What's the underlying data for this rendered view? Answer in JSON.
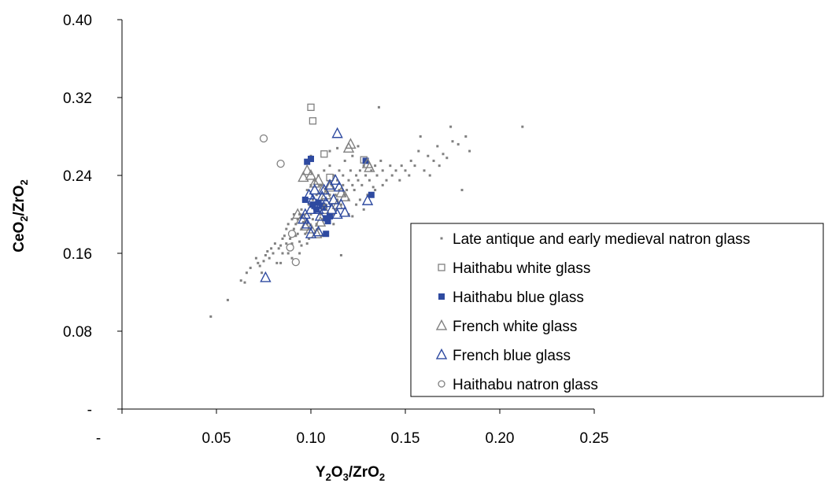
{
  "chart_data": {
    "type": "scatter",
    "xlabel": {
      "text": "Y",
      "sub1": "2",
      "mid1": "O",
      "sub2": "3",
      "mid2": "/ZrO",
      "sub3": "2"
    },
    "ylabel": {
      "text": "CeO",
      "sub1": "2",
      "mid1": "/ZrO",
      "sub2": "2"
    },
    "xlim": [
      0,
      0.25
    ],
    "ylim": [
      0,
      0.4
    ],
    "x_ticks": [
      {
        "value": 0,
        "label": "-"
      },
      {
        "value": 0.05,
        "label": "0.05"
      },
      {
        "value": 0.1,
        "label": "0.10"
      },
      {
        "value": 0.15,
        "label": "0.15"
      },
      {
        "value": 0.2,
        "label": "0.20"
      },
      {
        "value": 0.25,
        "label": "0.25"
      }
    ],
    "y_ticks": [
      {
        "value": 0,
        "label": "-"
      },
      {
        "value": 0.08,
        "label": "0.08"
      },
      {
        "value": 0.16,
        "label": "0.16"
      },
      {
        "value": 0.24,
        "label": "0.24"
      },
      {
        "value": 0.32,
        "label": "0.32"
      },
      {
        "value": 0.4,
        "label": "0.40"
      }
    ],
    "grid": false,
    "legend_position": "right",
    "series": [
      {
        "name": "Late antique and early medieval natron glass",
        "marker": "small-square",
        "color": "#808080",
        "points": [
          [
            0.047,
            0.095
          ],
          [
            0.056,
            0.112
          ],
          [
            0.063,
            0.132
          ],
          [
            0.065,
            0.13
          ],
          [
            0.066,
            0.14
          ],
          [
            0.068,
            0.145
          ],
          [
            0.071,
            0.155
          ],
          [
            0.072,
            0.15
          ],
          [
            0.073,
            0.147
          ],
          [
            0.074,
            0.14
          ],
          [
            0.075,
            0.152
          ],
          [
            0.076,
            0.158
          ],
          [
            0.077,
            0.162
          ],
          [
            0.078,
            0.155
          ],
          [
            0.079,
            0.165
          ],
          [
            0.08,
            0.16
          ],
          [
            0.081,
            0.17
          ],
          [
            0.082,
            0.15
          ],
          [
            0.083,
            0.165
          ],
          [
            0.084,
            0.168
          ],
          [
            0.085,
            0.175
          ],
          [
            0.085,
            0.16
          ],
          [
            0.086,
            0.178
          ],
          [
            0.087,
            0.185
          ],
          [
            0.087,
            0.17
          ],
          [
            0.088,
            0.19
          ],
          [
            0.088,
            0.16
          ],
          [
            0.089,
            0.175
          ],
          [
            0.09,
            0.195
          ],
          [
            0.09,
            0.17
          ],
          [
            0.091,
            0.185
          ],
          [
            0.091,
            0.2
          ],
          [
            0.092,
            0.19
          ],
          [
            0.092,
            0.178
          ],
          [
            0.093,
            0.18
          ],
          [
            0.093,
            0.195
          ],
          [
            0.094,
            0.2
          ],
          [
            0.094,
            0.172
          ],
          [
            0.095,
            0.185
          ],
          [
            0.095,
            0.205
          ],
          [
            0.095,
            0.168
          ],
          [
            0.096,
            0.192
          ],
          [
            0.096,
            0.215
          ],
          [
            0.097,
            0.2
          ],
          [
            0.097,
            0.18
          ],
          [
            0.098,
            0.225
          ],
          [
            0.098,
            0.19
          ],
          [
            0.099,
            0.21
          ],
          [
            0.099,
            0.175
          ],
          [
            0.1,
            0.2
          ],
          [
            0.1,
            0.23
          ],
          [
            0.1,
            0.185
          ],
          [
            0.101,
            0.215
          ],
          [
            0.101,
            0.195
          ],
          [
            0.102,
            0.235
          ],
          [
            0.102,
            0.205
          ],
          [
            0.103,
            0.19
          ],
          [
            0.103,
            0.22
          ],
          [
            0.104,
            0.21
          ],
          [
            0.104,
            0.24
          ],
          [
            0.105,
            0.2
          ],
          [
            0.105,
            0.23
          ],
          [
            0.106,
            0.195
          ],
          [
            0.106,
            0.215
          ],
          [
            0.107,
            0.245
          ],
          [
            0.107,
            0.205
          ],
          [
            0.108,
            0.225
          ],
          [
            0.108,
            0.21
          ],
          [
            0.109,
            0.235
          ],
          [
            0.109,
            0.2
          ],
          [
            0.11,
            0.22
          ],
          [
            0.11,
            0.25
          ],
          [
            0.111,
            0.21
          ],
          [
            0.111,
            0.23
          ],
          [
            0.112,
            0.2
          ],
          [
            0.112,
            0.24
          ],
          [
            0.113,
            0.22
          ],
          [
            0.113,
            0.205
          ],
          [
            0.114,
            0.235
          ],
          [
            0.114,
            0.215
          ],
          [
            0.115,
            0.245
          ],
          [
            0.115,
            0.225
          ],
          [
            0.116,
            0.21
          ],
          [
            0.117,
            0.23
          ],
          [
            0.117,
            0.24
          ],
          [
            0.118,
            0.22
          ],
          [
            0.118,
            0.255
          ],
          [
            0.119,
            0.225
          ],
          [
            0.12,
            0.235
          ],
          [
            0.12,
            0.215
          ],
          [
            0.121,
            0.245
          ],
          [
            0.122,
            0.23
          ],
          [
            0.122,
            0.26
          ],
          [
            0.123,
            0.225
          ],
          [
            0.124,
            0.24
          ],
          [
            0.125,
            0.27
          ],
          [
            0.125,
            0.235
          ],
          [
            0.126,
            0.245
          ],
          [
            0.127,
            0.23
          ],
          [
            0.128,
            0.25
          ],
          [
            0.129,
            0.24
          ],
          [
            0.13,
            0.255
          ],
          [
            0.131,
            0.235
          ],
          [
            0.132,
            0.245
          ],
          [
            0.133,
            0.228
          ],
          [
            0.134,
            0.25
          ],
          [
            0.135,
            0.24
          ],
          [
            0.136,
            0.31
          ],
          [
            0.137,
            0.255
          ],
          [
            0.138,
            0.245
          ],
          [
            0.14,
            0.235
          ],
          [
            0.142,
            0.25
          ],
          [
            0.143,
            0.24
          ],
          [
            0.145,
            0.245
          ],
          [
            0.147,
            0.235
          ],
          [
            0.148,
            0.25
          ],
          [
            0.15,
            0.245
          ],
          [
            0.152,
            0.24
          ],
          [
            0.153,
            0.255
          ],
          [
            0.155,
            0.25
          ],
          [
            0.157,
            0.265
          ],
          [
            0.158,
            0.28
          ],
          [
            0.16,
            0.245
          ],
          [
            0.162,
            0.26
          ],
          [
            0.163,
            0.24
          ],
          [
            0.165,
            0.255
          ],
          [
            0.167,
            0.27
          ],
          [
            0.168,
            0.25
          ],
          [
            0.17,
            0.262
          ],
          [
            0.172,
            0.258
          ],
          [
            0.174,
            0.29
          ],
          [
            0.175,
            0.275
          ],
          [
            0.178,
            0.272
          ],
          [
            0.18,
            0.225
          ],
          [
            0.182,
            0.28
          ],
          [
            0.184,
            0.265
          ],
          [
            0.212,
            0.29
          ],
          [
            0.116,
            0.158
          ],
          [
            0.104,
            0.185
          ],
          [
            0.106,
            0.178
          ],
          [
            0.098,
            0.17
          ],
          [
            0.094,
            0.16
          ],
          [
            0.09,
            0.155
          ],
          [
            0.084,
            0.15
          ],
          [
            0.112,
            0.19
          ],
          [
            0.108,
            0.195
          ],
          [
            0.12,
            0.2
          ],
          [
            0.124,
            0.21
          ],
          [
            0.126,
            0.215
          ],
          [
            0.13,
            0.22
          ],
          [
            0.134,
            0.225
          ],
          [
            0.138,
            0.23
          ],
          [
            0.128,
            0.205
          ],
          [
            0.122,
            0.198
          ],
          [
            0.1,
            0.26
          ],
          [
            0.11,
            0.265
          ],
          [
            0.114,
            0.268
          ]
        ]
      },
      {
        "name": "Haithabu white glass",
        "marker": "open-square",
        "color": "#808080",
        "points": [
          [
            0.1,
            0.31
          ],
          [
            0.101,
            0.296
          ],
          [
            0.107,
            0.262
          ],
          [
            0.11,
            0.238
          ],
          [
            0.128,
            0.256
          ]
        ]
      },
      {
        "name": "Haithabu blue glass",
        "marker": "filled-square",
        "color": "#2E4AA0",
        "points": [
          [
            0.098,
            0.254
          ],
          [
            0.1,
            0.257
          ],
          [
            0.097,
            0.215
          ],
          [
            0.101,
            0.21
          ],
          [
            0.103,
            0.205
          ],
          [
            0.104,
            0.212
          ],
          [
            0.106,
            0.209
          ],
          [
            0.107,
            0.207
          ],
          [
            0.108,
            0.196
          ],
          [
            0.109,
            0.193
          ],
          [
            0.11,
            0.198
          ],
          [
            0.108,
            0.18
          ],
          [
            0.129,
            0.255
          ],
          [
            0.132,
            0.22
          ]
        ]
      },
      {
        "name": "French white glass",
        "marker": "open-triangle",
        "color": "#808080",
        "points": [
          [
            0.096,
            0.238
          ],
          [
            0.098,
            0.245
          ],
          [
            0.1,
            0.24
          ],
          [
            0.102,
            0.232
          ],
          [
            0.104,
            0.235
          ],
          [
            0.106,
            0.225
          ],
          [
            0.108,
            0.22
          ],
          [
            0.11,
            0.228
          ],
          [
            0.112,
            0.215
          ],
          [
            0.114,
            0.21
          ],
          [
            0.116,
            0.222
          ],
          [
            0.118,
            0.218
          ],
          [
            0.12,
            0.268
          ],
          [
            0.121,
            0.272
          ],
          [
            0.13,
            0.252
          ],
          [
            0.131,
            0.248
          ],
          [
            0.093,
            0.2
          ],
          [
            0.095,
            0.195
          ],
          [
            0.097,
            0.188
          ],
          [
            0.1,
            0.185
          ],
          [
            0.103,
            0.18
          ],
          [
            0.105,
            0.192
          ],
          [
            0.107,
            0.205
          ]
        ]
      },
      {
        "name": "French blue glass",
        "marker": "open-triangle",
        "color": "#2E4AA0",
        "points": [
          [
            0.076,
            0.135
          ],
          [
            0.097,
            0.2
          ],
          [
            0.098,
            0.19
          ],
          [
            0.1,
            0.205
          ],
          [
            0.101,
            0.215
          ],
          [
            0.102,
            0.225
          ],
          [
            0.103,
            0.21
          ],
          [
            0.104,
            0.205
          ],
          [
            0.105,
            0.198
          ],
          [
            0.106,
            0.218
          ],
          [
            0.107,
            0.225
          ],
          [
            0.108,
            0.212
          ],
          [
            0.11,
            0.23
          ],
          [
            0.111,
            0.205
          ],
          [
            0.112,
            0.215
          ],
          [
            0.113,
            0.235
          ],
          [
            0.114,
            0.2
          ],
          [
            0.115,
            0.228
          ],
          [
            0.116,
            0.21
          ],
          [
            0.118,
            0.202
          ],
          [
            0.114,
            0.283
          ],
          [
            0.13,
            0.214
          ],
          [
            0.1,
            0.18
          ],
          [
            0.104,
            0.182
          ],
          [
            0.096,
            0.195
          ],
          [
            0.099,
            0.22
          ]
        ]
      },
      {
        "name": "Haithabu natron glass",
        "marker": "open-circle",
        "color": "#808080",
        "points": [
          [
            0.075,
            0.278
          ],
          [
            0.084,
            0.252
          ],
          [
            0.089,
            0.166
          ],
          [
            0.092,
            0.151
          ],
          [
            0.09,
            0.18
          ]
        ]
      }
    ]
  }
}
